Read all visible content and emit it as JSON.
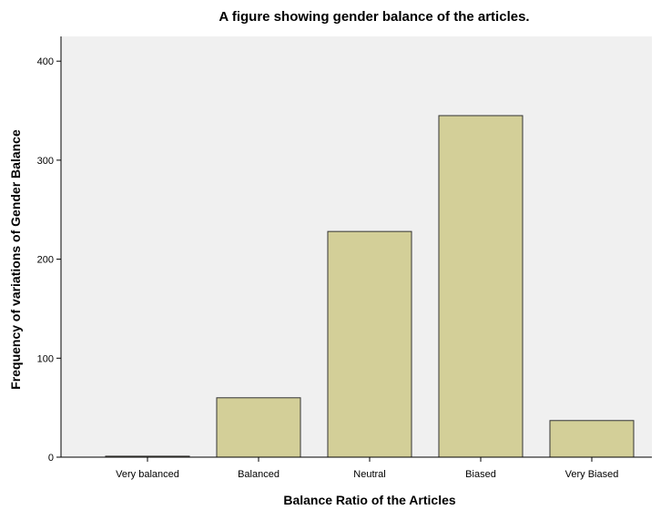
{
  "chart_data": {
    "type": "bar",
    "title": "A figure showing gender balance of the articles.",
    "xlabel": "Balance Ratio of the Articles",
    "ylabel": "Frequency of variations of Gender Balance",
    "categories": [
      "Very balanced",
      "Balanced",
      "Neutral",
      "Biased",
      "Very Biased"
    ],
    "values": [
      1,
      60,
      228,
      345,
      37
    ],
    "ylim": [
      0,
      425
    ],
    "yticks": [
      0,
      100,
      200,
      300,
      400
    ],
    "grid": false,
    "legend": "none",
    "colors": {
      "plot_background": "#f0f0f0",
      "bar_fill": "#d3cf98",
      "bar_stroke": "#333333"
    }
  }
}
